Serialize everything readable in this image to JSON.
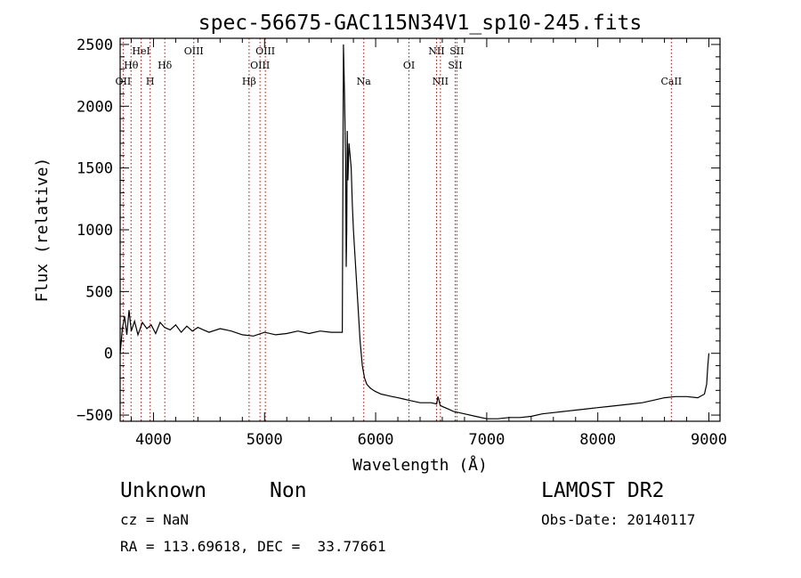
{
  "chart_data": {
    "type": "line",
    "title": "spec-56675-GAC115N34V1_sp10-245.fits",
    "xlabel": "Wavelength (Å)",
    "ylabel": "Flux (relative)",
    "xlim": [
      3700,
      9100
    ],
    "ylim": [
      -550,
      2550
    ],
    "xticks": [
      4000,
      5000,
      6000,
      7000,
      8000,
      9000
    ],
    "xtick_labels": [
      "4000",
      "5000",
      "6000",
      "7000",
      "8000",
      "9000"
    ],
    "yticks": [
      -500,
      0,
      500,
      1000,
      1500,
      2000,
      2500
    ],
    "ytick_labels": [
      "−500",
      "0",
      "500",
      "1000",
      "1500",
      "2000",
      "2500"
    ],
    "grid": false,
    "series": [
      {
        "x": [
          3700,
          3720,
          3740,
          3760,
          3780,
          3800,
          3830,
          3860,
          3900,
          3940,
          3980,
          4020,
          4060,
          4100,
          4150,
          4200,
          4250,
          4300,
          4350,
          4400,
          4450,
          4500,
          4600,
          4700,
          4800,
          4900,
          5000,
          5100,
          5200,
          5300,
          5400,
          5500,
          5600,
          5700,
          5710,
          5720,
          5730,
          5735,
          5740,
          5745,
          5750,
          5760,
          5770,
          5780,
          5790,
          5800,
          5820,
          5840,
          5860,
          5880,
          5900,
          5920,
          5950,
          5980,
          6000,
          6050,
          6100,
          6150,
          6200,
          6250,
          6300,
          6350,
          6400,
          6450,
          6500,
          6550,
          6560,
          6570,
          6580,
          6600,
          6650,
          6700,
          6800,
          6900,
          7000,
          7100,
          7200,
          7300,
          7400,
          7500,
          7600,
          7700,
          7800,
          7900,
          8000,
          8100,
          8200,
          8300,
          8400,
          8500,
          8600,
          8700,
          8800,
          8900,
          8960,
          8980,
          8990,
          9000
        ],
        "y": [
          0,
          200,
          300,
          150,
          350,
          180,
          260,
          150,
          250,
          200,
          230,
          160,
          250,
          210,
          190,
          230,
          170,
          220,
          180,
          210,
          190,
          170,
          200,
          180,
          150,
          140,
          170,
          150,
          160,
          180,
          160,
          180,
          170,
          170,
          2500,
          2100,
          1500,
          700,
          1000,
          1800,
          1400,
          1700,
          1600,
          1500,
          1200,
          1000,
          700,
          400,
          100,
          -100,
          -200,
          -250,
          -280,
          -300,
          -310,
          -330,
          -340,
          -350,
          -360,
          -370,
          -380,
          -390,
          -400,
          -400,
          -400,
          -410,
          -350,
          -380,
          -420,
          -430,
          -450,
          -470,
          -490,
          -510,
          -530,
          -530,
          -520,
          -520,
          -510,
          -490,
          -480,
          -470,
          -460,
          -450,
          -440,
          -430,
          -420,
          -410,
          -400,
          -380,
          -360,
          -350,
          -350,
          -360,
          -330,
          -250,
          -100,
          0
        ]
      }
    ],
    "lines": [
      {
        "x": 3727,
        "label": "OII",
        "row": 3
      },
      {
        "x": 3798,
        "label": "Hθ",
        "row": 2
      },
      {
        "x": 3889,
        "label": "HeI",
        "row": 1
      },
      {
        "x": 3970,
        "label": "H",
        "row": 3
      },
      {
        "x": 4102,
        "label": "Hδ",
        "row": 2
      },
      {
        "x": 4363,
        "label": "OIII",
        "row": 1
      },
      {
        "x": 4861,
        "label": "Hβ",
        "row": 3
      },
      {
        "x": 4959,
        "label": "OIII",
        "row": 2
      },
      {
        "x": 5007,
        "label": "OIII",
        "row": 1
      },
      {
        "x": 5893,
        "label": "Na",
        "row": 3
      },
      {
        "x": 6300,
        "label": "OI",
        "row": 2
      },
      {
        "x": 6548,
        "label": "NII",
        "row": 1
      },
      {
        "x": 6583,
        "label": "NII",
        "row": 3
      },
      {
        "x": 6716,
        "label": "SII",
        "row": 2
      },
      {
        "x": 6731,
        "label": "SII",
        "row": 1
      },
      {
        "x": 8662,
        "label": "CaII",
        "row": 3
      }
    ],
    "colors": {
      "spectrum": "#000000",
      "lines": "#cc0000"
    }
  },
  "info": {
    "object_class": "Unknown",
    "object_subclass": "Non",
    "survey": "LAMOST DR2",
    "redshift": "cz = NaN",
    "obs_date": "Obs-Date: 20140117",
    "coords": "RA = 113.69618, DEC =  33.77661"
  }
}
